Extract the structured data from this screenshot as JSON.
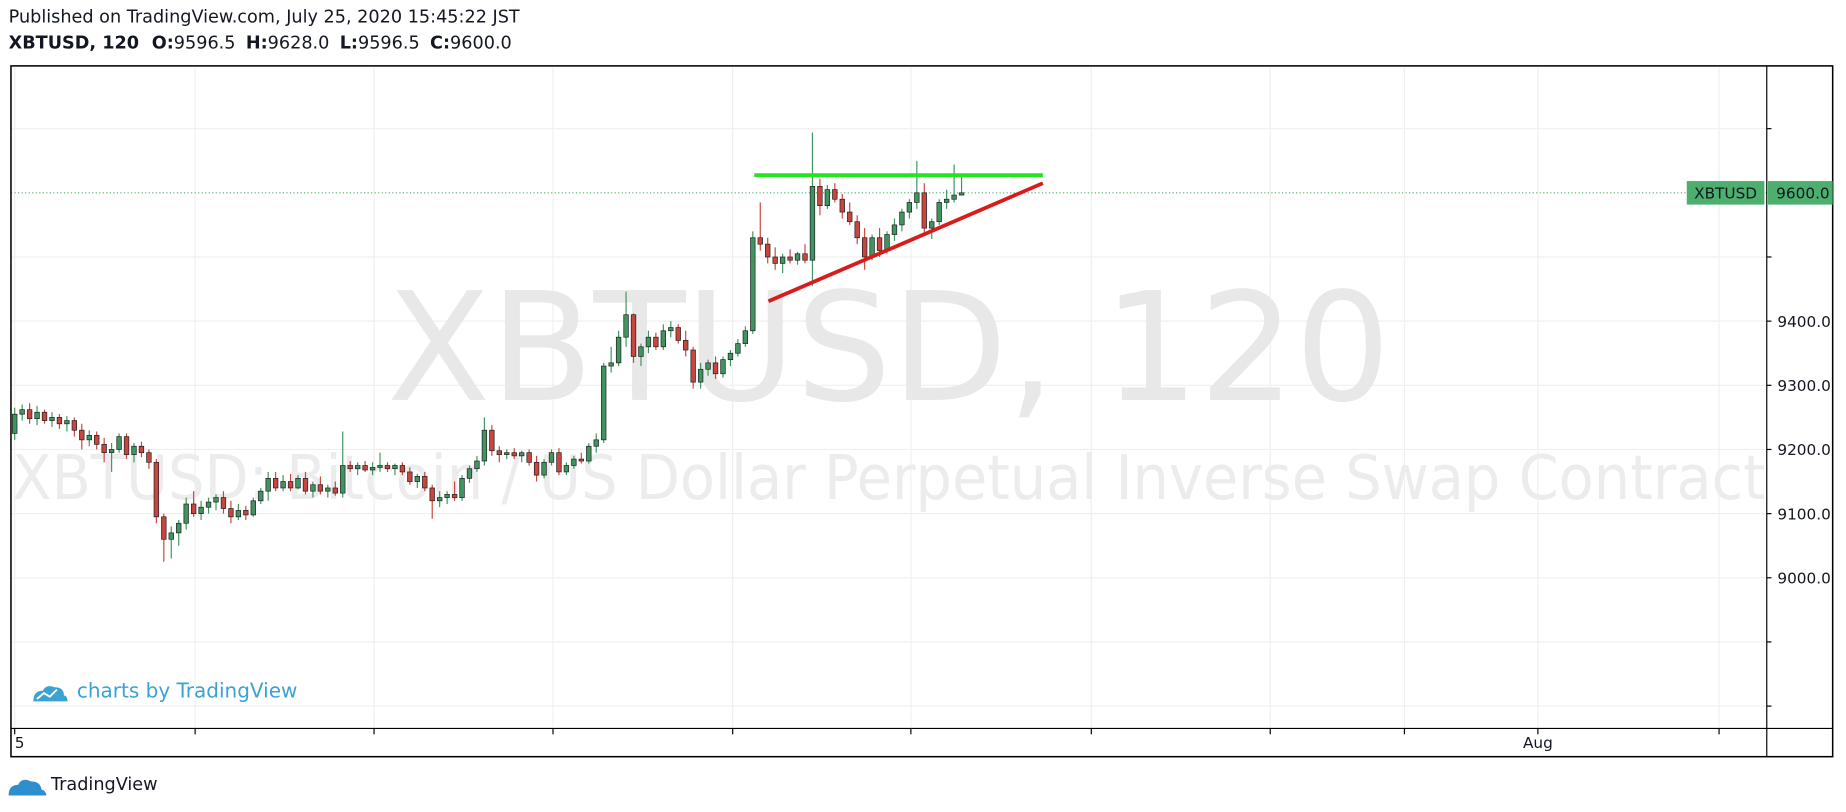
{
  "header": {
    "published": "Published on TradingView.com, July 25, 2020 15:45:22 JST",
    "symbol_interval": "XBTUSD, 120",
    "ohlc": [
      {
        "key": "O:",
        "value": "9596.5"
      },
      {
        "key": "H:",
        "value": "9628.0"
      },
      {
        "key": "L:",
        "value": "9596.5"
      },
      {
        "key": "C:",
        "value": "9600.0"
      }
    ]
  },
  "chart_data": {
    "type": "candlestick",
    "watermark": "XBTUSD, 120",
    "watermark_description": "XBTUSD: Bitcoin / US Dollar Perpetual Inverse Swap Contract",
    "up_color": "#3f9460",
    "down_color": "#c8463f",
    "ylim": [
      8767,
      9796
    ],
    "yticks": [
      {
        "value": 8800,
        "label": null
      },
      {
        "value": 8900,
        "label": null
      },
      {
        "value": 9000,
        "label": "9000.0"
      },
      {
        "value": 9100,
        "label": "9100.0"
      },
      {
        "value": 9200,
        "label": "9200.0"
      },
      {
        "value": 9300,
        "label": "9300.0"
      },
      {
        "value": 9400,
        "label": "9400.0"
      },
      {
        "value": 9500,
        "label": null
      },
      {
        "value": 9700,
        "label": null
      }
    ],
    "xlim": [
      -0.5,
      235
    ],
    "xticks": [
      {
        "value": 0,
        "label": "5"
      },
      {
        "value": 24.2,
        "label": null
      },
      {
        "value": 48.2,
        "label": null
      },
      {
        "value": 72.2,
        "label": null
      },
      {
        "value": 96.3,
        "label": null
      },
      {
        "value": 120.2,
        "label": null
      },
      {
        "value": 144.4,
        "label": null
      },
      {
        "value": 168.4,
        "label": null
      },
      {
        "value": 186.4,
        "label": null
      },
      {
        "value": 204.3,
        "label": "Aug"
      },
      {
        "value": 228.6,
        "label": null
      }
    ],
    "grid": true,
    "last_price": {
      "symbol": "XBTUSD",
      "value": 9600,
      "label": "9600.0",
      "color": "#4caf6e"
    },
    "drawings": [
      {
        "color": "#22e51f",
        "x": [
          99.2,
          137.9
        ],
        "y": [
          9627.5,
          9627.5
        ]
      },
      {
        "color": "#d81b1b",
        "x": [
          101.1,
          137.9
        ],
        "y": [
          9431,
          9615
        ]
      }
    ],
    "candles": [
      [
        9225,
        9265,
        9215,
        9255
      ],
      [
        9255,
        9270,
        9245,
        9262
      ],
      [
        9262,
        9272,
        9240,
        9248
      ],
      [
        9248,
        9268,
        9238,
        9258
      ],
      [
        9258,
        9262,
        9240,
        9245
      ],
      [
        9245,
        9258,
        9235,
        9250
      ],
      [
        9250,
        9255,
        9232,
        9240
      ],
      [
        9240,
        9252,
        9228,
        9245
      ],
      [
        9245,
        9250,
        9220,
        9230
      ],
      [
        9230,
        9240,
        9200,
        9215
      ],
      [
        9215,
        9230,
        9205,
        9222
      ],
      [
        9222,
        9228,
        9200,
        9208
      ],
      [
        9208,
        9218,
        9180,
        9195
      ],
      [
        9195,
        9210,
        9165,
        9200
      ],
      [
        9200,
        9225,
        9195,
        9220
      ],
      [
        9220,
        9225,
        9185,
        9192
      ],
      [
        9192,
        9210,
        9180,
        9205
      ],
      [
        9205,
        9212,
        9188,
        9195
      ],
      [
        9195,
        9200,
        9170,
        9180
      ],
      [
        9180,
        9185,
        9085,
        9095
      ],
      [
        9095,
        9100,
        9025,
        9060
      ],
      [
        9060,
        9080,
        9030,
        9070
      ],
      [
        9070,
        9090,
        9050,
        9085
      ],
      [
        9085,
        9125,
        9075,
        9115
      ],
      [
        9115,
        9135,
        9095,
        9100
      ],
      [
        9100,
        9120,
        9090,
        9110
      ],
      [
        9110,
        9125,
        9100,
        9118
      ],
      [
        9118,
        9130,
        9105,
        9125
      ],
      [
        9125,
        9135,
        9100,
        9108
      ],
      [
        9108,
        9120,
        9085,
        9095
      ],
      [
        9095,
        9115,
        9090,
        9105
      ],
      [
        9105,
        9112,
        9090,
        9098
      ],
      [
        9098,
        9125,
        9095,
        9120
      ],
      [
        9120,
        9140,
        9115,
        9135
      ],
      [
        9135,
        9165,
        9120,
        9155
      ],
      [
        9155,
        9165,
        9135,
        9140
      ],
      [
        9140,
        9160,
        9135,
        9150
      ],
      [
        9150,
        9162,
        9135,
        9140
      ],
      [
        9140,
        9160,
        9138,
        9155
      ],
      [
        9155,
        9165,
        9130,
        9135
      ],
      [
        9135,
        9150,
        9125,
        9145
      ],
      [
        9145,
        9158,
        9130,
        9135
      ],
      [
        9135,
        9145,
        9125,
        9140
      ],
      [
        9140,
        9150,
        9128,
        9132
      ],
      [
        9132,
        9228,
        9125,
        9175
      ],
      [
        9175,
        9182,
        9165,
        9170
      ],
      [
        9170,
        9180,
        9160,
        9175
      ],
      [
        9175,
        9182,
        9165,
        9168
      ],
      [
        9168,
        9180,
        9160,
        9172
      ],
      [
        9172,
        9195,
        9165,
        9175
      ],
      [
        9175,
        9180,
        9165,
        9170
      ],
      [
        9170,
        9178,
        9160,
        9175
      ],
      [
        9175,
        9180,
        9160,
        9165
      ],
      [
        9165,
        9172,
        9145,
        9150
      ],
      [
        9150,
        9162,
        9140,
        9158
      ],
      [
        9158,
        9165,
        9135,
        9140
      ],
      [
        9140,
        9145,
        9092,
        9120
      ],
      [
        9120,
        9135,
        9110,
        9125
      ],
      [
        9125,
        9135,
        9115,
        9130
      ],
      [
        9130,
        9150,
        9120,
        9125
      ],
      [
        9125,
        9160,
        9120,
        9155
      ],
      [
        9155,
        9175,
        9148,
        9170
      ],
      [
        9170,
        9190,
        9165,
        9182
      ],
      [
        9182,
        9250,
        9175,
        9230
      ],
      [
        9230,
        9238,
        9190,
        9198
      ],
      [
        9198,
        9205,
        9180,
        9192
      ],
      [
        9192,
        9200,
        9185,
        9195
      ],
      [
        9195,
        9202,
        9185,
        9190
      ],
      [
        9190,
        9198,
        9180,
        9195
      ],
      [
        9195,
        9200,
        9175,
        9180
      ],
      [
        9180,
        9190,
        9150,
        9160
      ],
      [
        9160,
        9185,
        9155,
        9180
      ],
      [
        9180,
        9200,
        9175,
        9195
      ],
      [
        9195,
        9202,
        9160,
        9165
      ],
      [
        9165,
        9180,
        9160,
        9175
      ],
      [
        9175,
        9190,
        9170,
        9185
      ],
      [
        9185,
        9195,
        9178,
        9182
      ],
      [
        9182,
        9210,
        9178,
        9205
      ],
      [
        9205,
        9225,
        9195,
        9215
      ],
      [
        9215,
        9335,
        9210,
        9330
      ],
      [
        9330,
        9360,
        9320,
        9335
      ],
      [
        9335,
        9385,
        9330,
        9375
      ],
      [
        9375,
        9446,
        9360,
        9410
      ],
      [
        9410,
        9412,
        9335,
        9345
      ],
      [
        9345,
        9365,
        9330,
        9360
      ],
      [
        9360,
        9385,
        9350,
        9375
      ],
      [
        9375,
        9382,
        9355,
        9360
      ],
      [
        9360,
        9395,
        9355,
        9385
      ],
      [
        9385,
        9400,
        9375,
        9390
      ],
      [
        9390,
        9395,
        9365,
        9370
      ],
      [
        9370,
        9385,
        9345,
        9355
      ],
      [
        9355,
        9360,
        9295,
        9305
      ],
      [
        9305,
        9335,
        9295,
        9325
      ],
      [
        9325,
        9340,
        9315,
        9335
      ],
      [
        9335,
        9345,
        9310,
        9318
      ],
      [
        9318,
        9345,
        9312,
        9340
      ],
      [
        9340,
        9355,
        9330,
        9350
      ],
      [
        9350,
        9372,
        9345,
        9365
      ],
      [
        9365,
        9392,
        9360,
        9385
      ],
      [
        9385,
        9540,
        9380,
        9530
      ],
      [
        9530,
        9585,
        9510,
        9520
      ],
      [
        9520,
        9530,
        9490,
        9500
      ],
      [
        9500,
        9515,
        9480,
        9490
      ],
      [
        9490,
        9505,
        9475,
        9500
      ],
      [
        9500,
        9512,
        9490,
        9495
      ],
      [
        9495,
        9508,
        9488,
        9505
      ],
      [
        9505,
        9520,
        9490,
        9495
      ],
      [
        9495,
        9694,
        9455,
        9610
      ],
      [
        9610,
        9622,
        9565,
        9580
      ],
      [
        9580,
        9612,
        9575,
        9605
      ],
      [
        9605,
        9615,
        9585,
        9590
      ],
      [
        9590,
        9598,
        9560,
        9570
      ],
      [
        9570,
        9585,
        9550,
        9555
      ],
      [
        9555,
        9565,
        9520,
        9530
      ],
      [
        9530,
        9545,
        9480,
        9500
      ],
      [
        9500,
        9535,
        9495,
        9530
      ],
      [
        9530,
        9545,
        9500,
        9510
      ],
      [
        9510,
        9540,
        9505,
        9535
      ],
      [
        9535,
        9560,
        9525,
        9550
      ],
      [
        9550,
        9575,
        9540,
        9570
      ],
      [
        9570,
        9590,
        9560,
        9585
      ],
      [
        9585,
        9650,
        9575,
        9600
      ],
      [
        9600,
        9615,
        9535,
        9545
      ],
      [
        9545,
        9560,
        9528,
        9555
      ],
      [
        9555,
        9590,
        9550,
        9585
      ],
      [
        9585,
        9605,
        9575,
        9590
      ],
      [
        9590,
        9644,
        9585,
        9596.5
      ],
      [
        9596.5,
        9628,
        9596.5,
        9600
      ]
    ]
  },
  "footer": {
    "branding": "charts by TradingView",
    "logo_text": "TradingView"
  }
}
